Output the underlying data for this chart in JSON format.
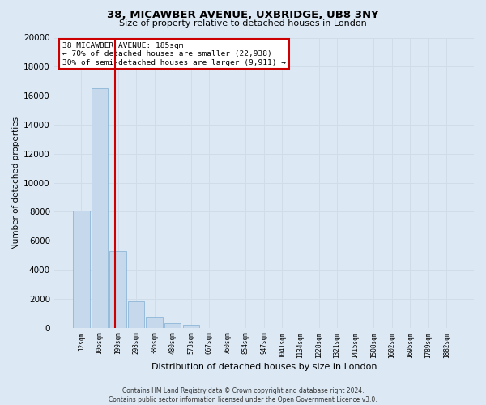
{
  "title": "38, MICAWBER AVENUE, UXBRIDGE, UB8 3NY",
  "subtitle": "Size of property relative to detached houses in London",
  "xlabel": "Distribution of detached houses by size in London",
  "ylabel": "Number of detached properties",
  "categories": [
    "12sqm",
    "106sqm",
    "199sqm",
    "293sqm",
    "386sqm",
    "480sqm",
    "573sqm",
    "667sqm",
    "760sqm",
    "854sqm",
    "947sqm",
    "1041sqm",
    "1134sqm",
    "1228sqm",
    "1321sqm",
    "1415sqm",
    "1508sqm",
    "1602sqm",
    "1695sqm",
    "1789sqm",
    "1882sqm"
  ],
  "values": [
    8100,
    16500,
    5300,
    1800,
    750,
    300,
    200,
    0,
    0,
    0,
    0,
    0,
    0,
    0,
    0,
    0,
    0,
    0,
    0,
    0,
    0
  ],
  "bar_color": "#c5d8ec",
  "bar_edge_color": "#7fafd1",
  "vline_color": "#cc0000",
  "annotation_title": "38 MICAWBER AVENUE: 185sqm",
  "annotation_line1": "← 70% of detached houses are smaller (22,938)",
  "annotation_line2": "30% of semi-detached houses are larger (9,911) →",
  "annotation_box_color": "#ffffff",
  "annotation_box_edge_color": "#cc0000",
  "ylim": [
    0,
    20000
  ],
  "yticks": [
    0,
    2000,
    4000,
    6000,
    8000,
    10000,
    12000,
    14000,
    16000,
    18000,
    20000
  ],
  "grid_color": "#d0dce8",
  "background_color": "#dce9f5",
  "footer_line1": "Contains HM Land Registry data © Crown copyright and database right 2024.",
  "footer_line2": "Contains public sector information licensed under the Open Government Licence v3.0."
}
